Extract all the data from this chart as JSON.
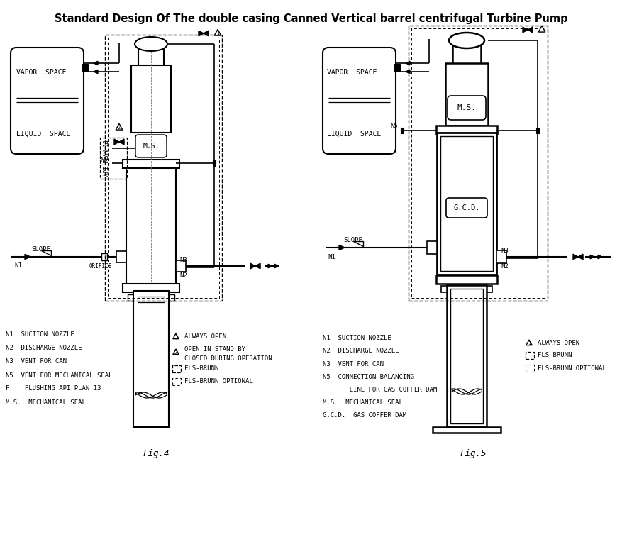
{
  "title": "Standard Design Of The double casing Canned Vertical barrel centrifugal Turbine Pump",
  "title_fontsize": 10.5,
  "bg_color": "#ffffff",
  "fig4_label": "Fig.4",
  "fig5_label": "Fig.5",
  "legend4": [
    "N1  SUCTION NOZZLE",
    "N2  DISCHARGE NOZZLE",
    "N3  VENT FOR CAN",
    "N5  VENT FOR MECHANICAL SEAL",
    "F    FLUSHING API PLAN 13",
    "M.S.  MECHANICAL SEAL"
  ],
  "legend5_left": [
    "N1  SUCTION NOZZLE",
    "N2  DISCHARGE NOZZLE",
    "N3  VENT FOR CAN",
    "N5  CONNECTION BALANCING",
    "       LINE FOR GAS COFFER DAM",
    "M.S.  MECHANICAL SEAL",
    "G.C.D.  GAS COFFER DAM"
  ]
}
